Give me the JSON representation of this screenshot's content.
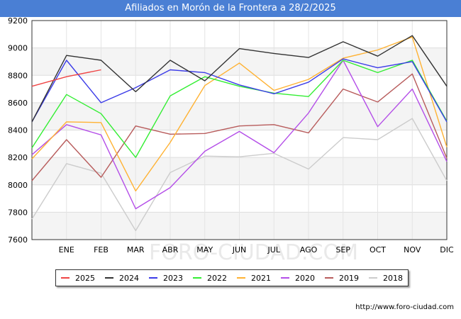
{
  "header": {
    "title": "Afiliados en Morón de la Frontera a 28/2/2025"
  },
  "footer": {
    "url": "http://www.foro-ciudad.com"
  },
  "colors": {
    "title_bar": "#4a7fd4"
  },
  "chart_data": {
    "type": "line",
    "title": "Afiliados en Morón de la Frontera a 28/2/2025",
    "categories": [
      "",
      "ENE",
      "FEB",
      "MAR",
      "ABR",
      "MAY",
      "JUN",
      "JUL",
      "AGO",
      "SEP",
      "OCT",
      "NOV",
      "DIC"
    ],
    "y_ticks": [
      7600,
      7800,
      8000,
      8200,
      8400,
      8600,
      8800,
      9000,
      9200
    ],
    "ylim": [
      7600,
      9200
    ],
    "grid": true,
    "legend_position": "bottom",
    "series": [
      {
        "name": "2025",
        "color": "#ef4444",
        "values": [
          8720,
          8790,
          8840,
          null,
          null,
          null,
          null,
          null,
          null,
          null,
          null,
          null,
          null
        ]
      },
      {
        "name": "2024",
        "color": "#333333",
        "values": [
          8460,
          8945,
          8910,
          8680,
          8910,
          8760,
          8995,
          8960,
          8930,
          9045,
          8940,
          9090,
          8720
        ]
      },
      {
        "name": "2023",
        "color": "#3b3be8",
        "values": [
          8460,
          8910,
          8600,
          8710,
          8840,
          8820,
          8730,
          8665,
          8750,
          8920,
          8855,
          8900,
          8460
        ]
      },
      {
        "name": "2022",
        "color": "#33ee33",
        "values": [
          8270,
          8660,
          8520,
          8200,
          8650,
          8790,
          8720,
          8670,
          8645,
          8910,
          8820,
          8910,
          8465
        ]
      },
      {
        "name": "2021",
        "color": "#ffb233",
        "values": [
          8190,
          8460,
          8455,
          7955,
          8310,
          8725,
          8890,
          8690,
          8770,
          8925,
          8985,
          9080,
          8275
        ]
      },
      {
        "name": "2020",
        "color": "#b44ee8",
        "values": [
          8220,
          8440,
          8365,
          7825,
          7980,
          8245,
          8390,
          8235,
          8525,
          8910,
          8425,
          8700,
          8170
        ]
      },
      {
        "name": "2019",
        "color": "#b85c5c",
        "values": [
          8030,
          8330,
          8055,
          8430,
          8370,
          8375,
          8430,
          8440,
          8380,
          8700,
          8605,
          8810,
          8195
        ]
      },
      {
        "name": "2018",
        "color": "#cccccc",
        "values": [
          7750,
          8155,
          8085,
          7665,
          8090,
          8210,
          8205,
          8230,
          8115,
          8345,
          8330,
          8485,
          8030
        ]
      }
    ]
  }
}
